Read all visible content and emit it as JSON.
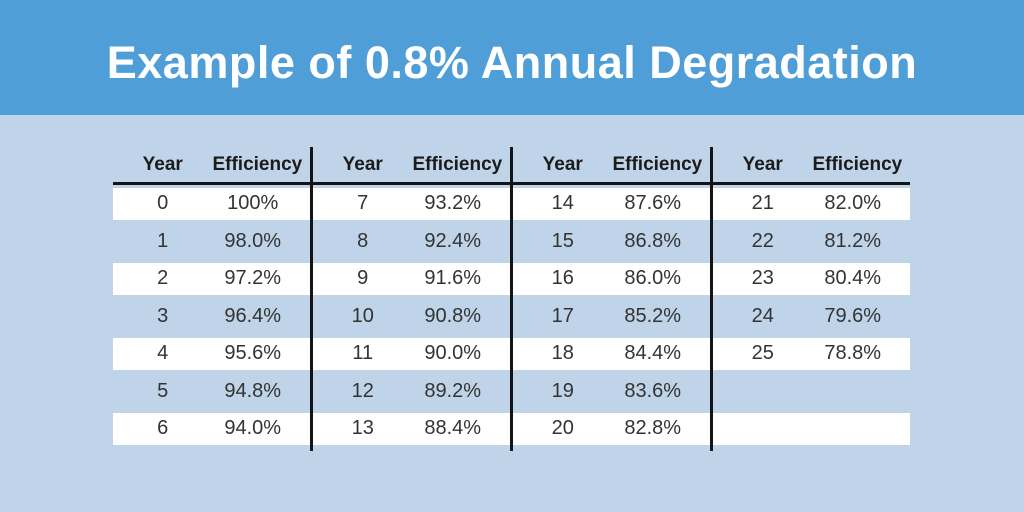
{
  "title": "Example of 0.8% Annual Degradation",
  "colors": {
    "header-blue": "#4f9ed8",
    "page-blue": "#bfd4e9",
    "line-black": "#141414",
    "header-text": "#ffffff",
    "cell-text": "#333333",
    "th-text": "#1b1b1b",
    "row-white": "#ffffff"
  },
  "table": {
    "column_headers": [
      "Year",
      "Efficiency"
    ],
    "groups": [
      {
        "rows": [
          [
            "0",
            "100%"
          ],
          [
            "1",
            "98.0%"
          ],
          [
            "2",
            "97.2%"
          ],
          [
            "3",
            "96.4%"
          ],
          [
            "4",
            "95.6%"
          ],
          [
            "5",
            "94.8%"
          ],
          [
            "6",
            "94.0%"
          ]
        ]
      },
      {
        "rows": [
          [
            "7",
            "93.2%"
          ],
          [
            "8",
            "92.4%"
          ],
          [
            "9",
            "91.6%"
          ],
          [
            "10",
            "90.8%"
          ],
          [
            "11",
            "90.0%"
          ],
          [
            "12",
            "89.2%"
          ],
          [
            "13",
            "88.4%"
          ]
        ]
      },
      {
        "rows": [
          [
            "14",
            "87.6%"
          ],
          [
            "15",
            "86.8%"
          ],
          [
            "16",
            "86.0%"
          ],
          [
            "17",
            "85.2%"
          ],
          [
            "18",
            "84.4%"
          ],
          [
            "19",
            "83.6%"
          ],
          [
            "20",
            "82.8%"
          ]
        ]
      },
      {
        "rows": [
          [
            "21",
            "82.0%"
          ],
          [
            "22",
            "81.2%"
          ],
          [
            "23",
            "80.4%"
          ],
          [
            "24",
            "79.6%"
          ],
          [
            "25",
            "78.8%"
          ],
          [
            "",
            ""
          ],
          [
            "",
            ""
          ]
        ]
      }
    ]
  },
  "chart_data": {
    "type": "table",
    "title": "Example of 0.8% Annual Degradation",
    "columns": [
      "Year",
      "Efficiency"
    ],
    "years": [
      0,
      1,
      2,
      3,
      4,
      5,
      6,
      7,
      8,
      9,
      10,
      11,
      12,
      13,
      14,
      15,
      16,
      17,
      18,
      19,
      20,
      21,
      22,
      23,
      24,
      25
    ],
    "efficiency_percent": [
      100,
      98.0,
      97.2,
      96.4,
      95.6,
      94.8,
      94.0,
      93.2,
      92.4,
      91.6,
      90.8,
      90.0,
      89.2,
      88.4,
      87.6,
      86.8,
      86.0,
      85.2,
      84.4,
      83.6,
      82.8,
      82.0,
      81.2,
      80.4,
      79.6,
      78.8
    ],
    "annual_degradation_rate_percent": 0.8,
    "layout": "four column-pair groups, alternating white/blue rows, black group separators"
  }
}
